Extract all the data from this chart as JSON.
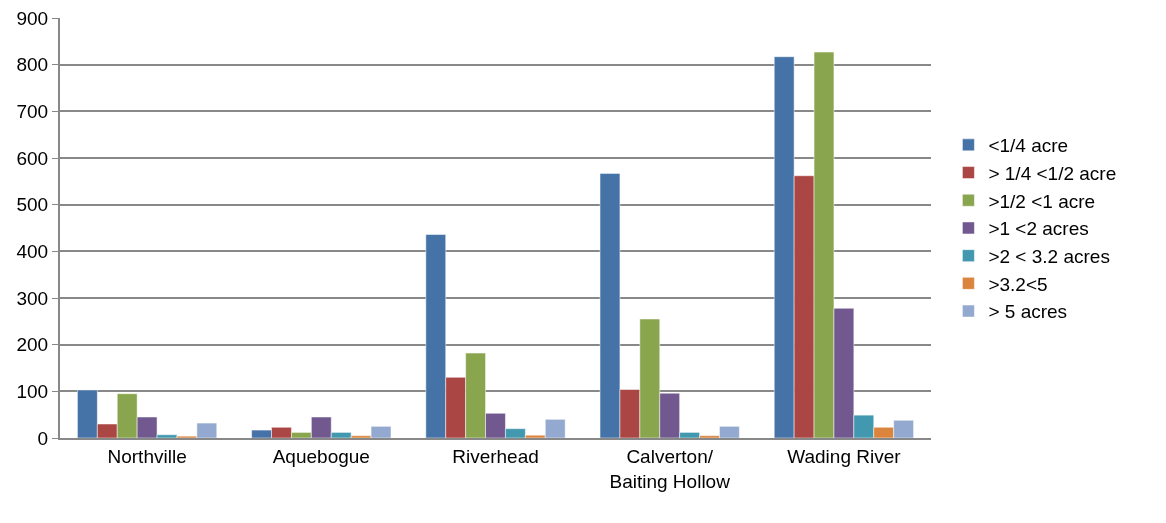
{
  "chart_data": {
    "type": "bar",
    "categories": [
      "Northville",
      "Aquebogue",
      "Riverhead",
      "Calverton/\nBaiting Hollow",
      "Wading River"
    ],
    "series": [
      {
        "name": "<1/4 acre",
        "color": "#4572a7",
        "values": [
          103,
          17,
          436,
          567,
          817
        ]
      },
      {
        "name": "> 1/4 <1/2 acre",
        "color": "#aa4643",
        "values": [
          30,
          23,
          130,
          104,
          562
        ]
      },
      {
        "name": ">1/2 <1 acre",
        "color": "#89a54e",
        "values": [
          95,
          12,
          182,
          255,
          827
        ]
      },
      {
        "name": ">1 <2 acres",
        "color": "#71588f",
        "values": [
          45,
          45,
          53,
          96,
          278
        ]
      },
      {
        "name": ">2 < 3.2 acres",
        "color": "#4198af",
        "values": [
          7,
          12,
          20,
          12,
          49
        ]
      },
      {
        "name": ">3.2<5",
        "color": "#db843d",
        "values": [
          4,
          5,
          6,
          5,
          23
        ]
      },
      {
        "name": "> 5 acres",
        "color": "#93a9cf",
        "values": [
          32,
          25,
          40,
          25,
          38
        ]
      }
    ],
    "ylim": [
      0,
      900
    ],
    "yticks": [
      0,
      100,
      200,
      300,
      400,
      500,
      600,
      700,
      800,
      900
    ],
    "grid": "y",
    "legend": "right"
  }
}
